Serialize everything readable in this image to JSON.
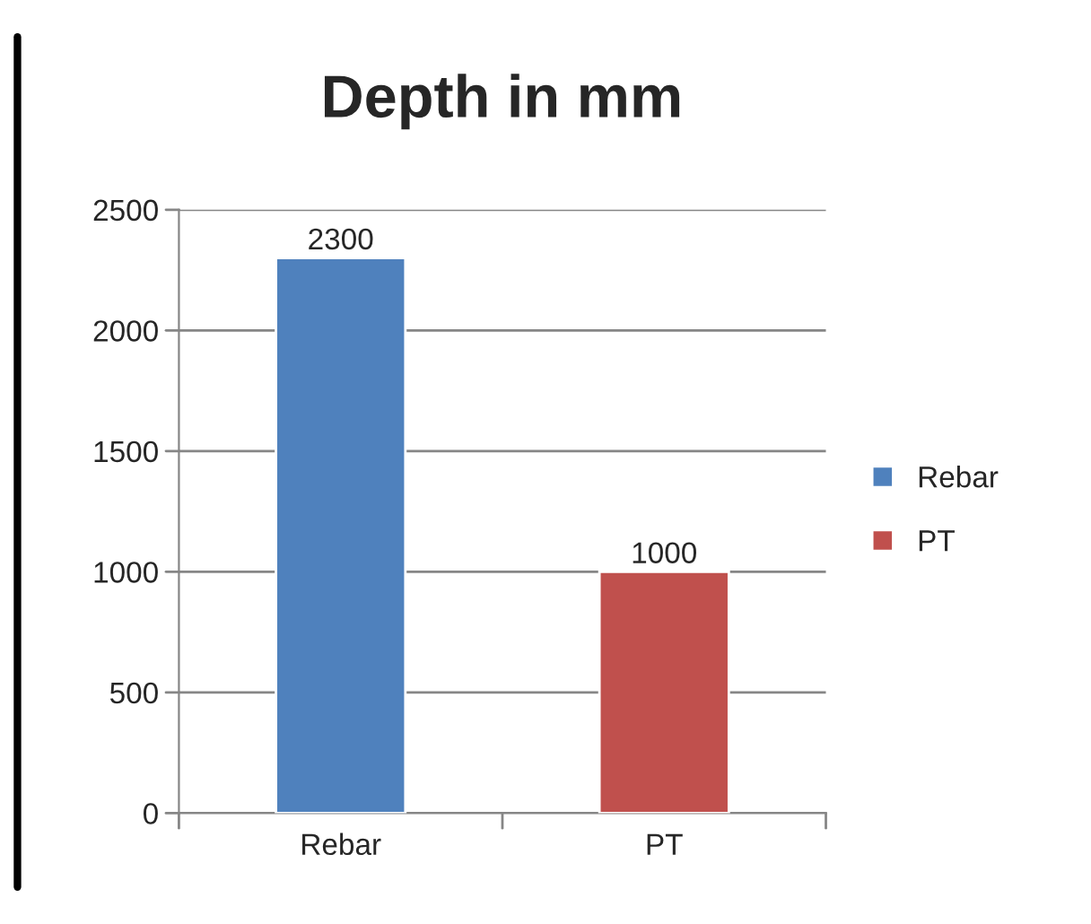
{
  "chart_data": {
    "type": "bar",
    "title": "Depth in mm",
    "categories": [
      "Rebar",
      "PT"
    ],
    "series": [
      {
        "name": "Rebar",
        "color": "#4f81bd",
        "values": [
          2300,
          null
        ]
      },
      {
        "name": "PT",
        "color": "#c0504d",
        "values": [
          null,
          1000
        ]
      }
    ],
    "ylim": [
      0,
      2500
    ],
    "yticks": [
      0,
      500,
      1000,
      1500,
      2000,
      2500
    ],
    "grid": "y",
    "legend": "right",
    "data_labels": true
  }
}
